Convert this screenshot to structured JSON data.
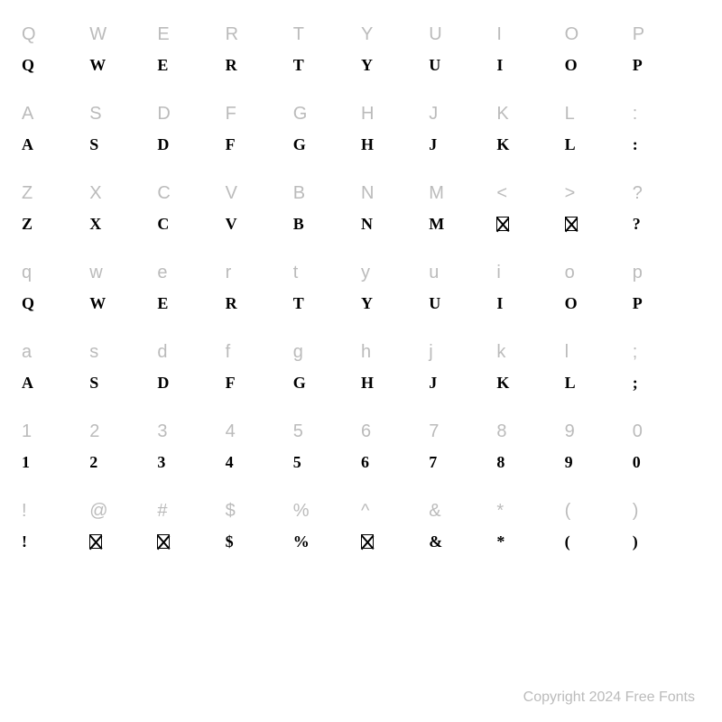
{
  "background_color": "#ffffff",
  "label_color": "#bbbbbb",
  "glyph_color": "#000000",
  "label_fontsize": 20,
  "glyph_fontsize": 18,
  "columns": 10,
  "rows": [
    {
      "labels": [
        "Q",
        "W",
        "E",
        "R",
        "T",
        "Y",
        "U",
        "I",
        "O",
        "P"
      ],
      "glyphs": [
        "Q",
        "W",
        "E",
        "R",
        "T",
        "Y",
        "U",
        "I",
        "O",
        "P"
      ],
      "tofu": [
        false,
        false,
        false,
        false,
        false,
        false,
        false,
        false,
        false,
        false
      ]
    },
    {
      "labels": [
        "A",
        "S",
        "D",
        "F",
        "G",
        "H",
        "J",
        "K",
        "L",
        ":"
      ],
      "glyphs": [
        "A",
        "S",
        "D",
        "F",
        "G",
        "H",
        "J",
        "K",
        "L",
        ":"
      ],
      "tofu": [
        false,
        false,
        false,
        false,
        false,
        false,
        false,
        false,
        false,
        false
      ]
    },
    {
      "labels": [
        "Z",
        "X",
        "C",
        "V",
        "B",
        "N",
        "M",
        "<",
        ">",
        "?"
      ],
      "glyphs": [
        "Z",
        "X",
        "C",
        "V",
        "B",
        "N",
        "M",
        "",
        "",
        "?"
      ],
      "tofu": [
        false,
        false,
        false,
        false,
        false,
        false,
        false,
        true,
        true,
        false
      ]
    },
    {
      "labels": [
        "q",
        "w",
        "e",
        "r",
        "t",
        "y",
        "u",
        "i",
        "o",
        "p"
      ],
      "glyphs": [
        "Q",
        "W",
        "E",
        "R",
        "T",
        "Y",
        "U",
        "I",
        "O",
        "P"
      ],
      "tofu": [
        false,
        false,
        false,
        false,
        false,
        false,
        false,
        false,
        false,
        false
      ]
    },
    {
      "labels": [
        "a",
        "s",
        "d",
        "f",
        "g",
        "h",
        "j",
        "k",
        "l",
        ";"
      ],
      "glyphs": [
        "A",
        "S",
        "D",
        "F",
        "G",
        "H",
        "J",
        "K",
        "L",
        ";"
      ],
      "tofu": [
        false,
        false,
        false,
        false,
        false,
        false,
        false,
        false,
        false,
        false
      ]
    },
    {
      "labels": [
        "1",
        "2",
        "3",
        "4",
        "5",
        "6",
        "7",
        "8",
        "9",
        "0"
      ],
      "glyphs": [
        "1",
        "2",
        "3",
        "4",
        "5",
        "6",
        "7",
        "8",
        "9",
        "0"
      ],
      "tofu": [
        false,
        false,
        false,
        false,
        false,
        false,
        false,
        false,
        false,
        false
      ]
    },
    {
      "labels": [
        "!",
        "@",
        "#",
        "$",
        "%",
        "^",
        "&",
        "*",
        "(",
        ")"
      ],
      "glyphs": [
        "!",
        "",
        "",
        "$",
        "%",
        "",
        "&",
        "*",
        "(",
        ")"
      ],
      "tofu": [
        false,
        true,
        true,
        false,
        false,
        true,
        false,
        false,
        false,
        false
      ]
    }
  ],
  "copyright": "Copyright 2024 Free Fonts"
}
